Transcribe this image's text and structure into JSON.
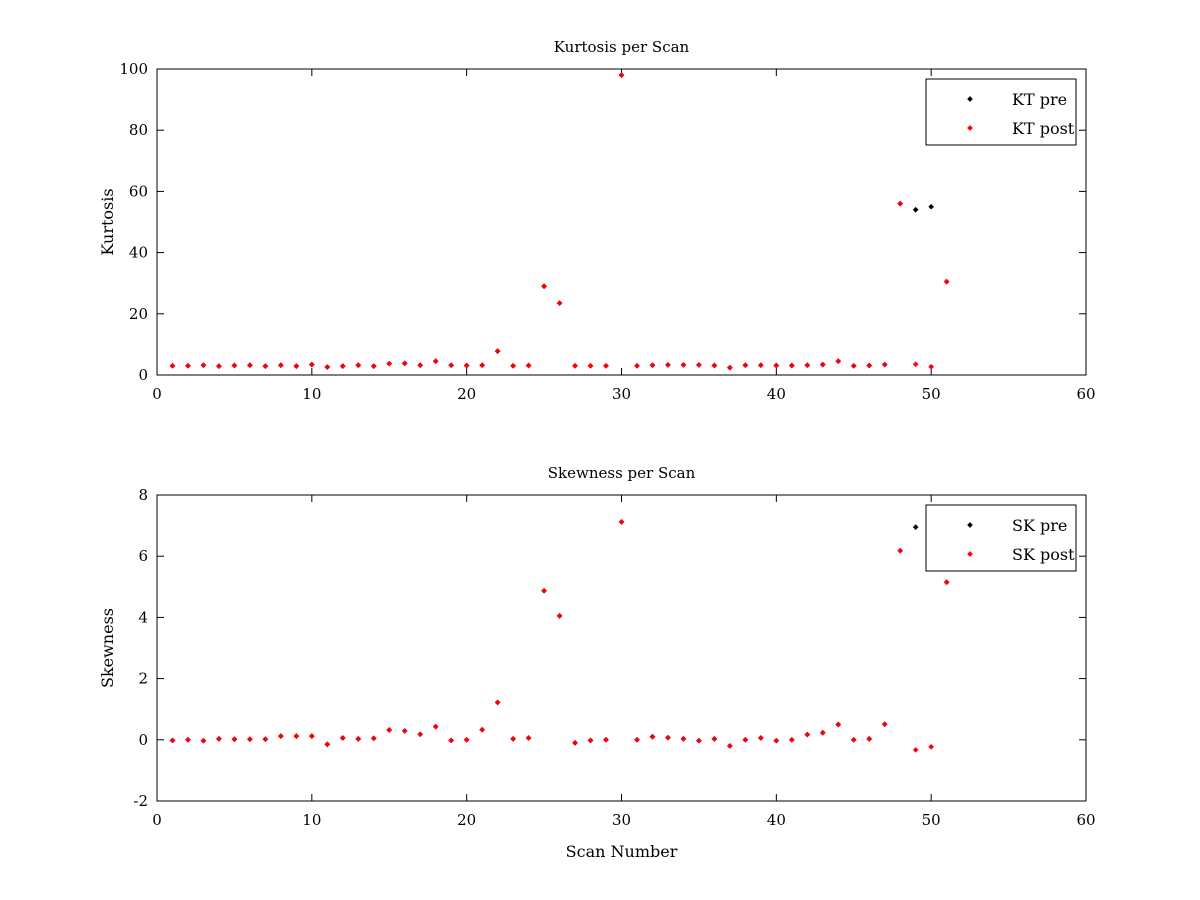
{
  "chart_data": [
    {
      "type": "scatter",
      "title": "Kurtosis per Scan",
      "xlabel": "",
      "ylabel": "Kurtosis",
      "xlim": [
        0,
        60
      ],
      "ylim": [
        0,
        100
      ],
      "xticks": [
        0,
        10,
        20,
        30,
        40,
        50,
        60
      ],
      "yticks": [
        0,
        20,
        40,
        60,
        80,
        100
      ],
      "grid": false,
      "legend": "top-right",
      "series": [
        {
          "name": "KT pre",
          "color": "#000000",
          "points": [
            [
              1,
              3.0
            ],
            [
              2,
              3.0
            ],
            [
              3,
              3.2
            ],
            [
              4,
              2.9
            ],
            [
              5,
              3.1
            ],
            [
              6,
              3.2
            ],
            [
              7,
              2.9
            ],
            [
              8,
              3.2
            ],
            [
              9,
              2.9
            ],
            [
              10,
              3.4
            ],
            [
              11,
              2.6
            ],
            [
              12,
              2.9
            ],
            [
              13,
              3.2
            ],
            [
              14,
              2.9
            ],
            [
              15,
              3.7
            ],
            [
              16,
              3.8
            ],
            [
              17,
              3.2
            ],
            [
              18,
              4.5
            ],
            [
              19,
              3.2
            ],
            [
              20,
              3.1
            ],
            [
              21,
              3.2
            ],
            [
              22,
              7.8
            ],
            [
              23,
              3.0
            ],
            [
              24,
              3.1
            ],
            [
              25,
              29.0
            ],
            [
              26,
              23.5
            ],
            [
              27,
              3.0
            ],
            [
              28,
              3.0
            ],
            [
              29,
              3.0
            ],
            [
              30,
              98.0
            ],
            [
              31,
              3.0
            ],
            [
              32,
              3.2
            ],
            [
              33,
              3.3
            ],
            [
              34,
              3.3
            ],
            [
              35,
              3.3
            ],
            [
              36,
              3.1
            ],
            [
              37,
              2.4
            ],
            [
              38,
              3.2
            ],
            [
              39,
              3.2
            ],
            [
              40,
              3.1
            ],
            [
              41,
              3.1
            ],
            [
              42,
              3.2
            ],
            [
              43,
              3.4
            ],
            [
              44,
              4.5
            ],
            [
              45,
              3.0
            ],
            [
              46,
              3.1
            ],
            [
              47,
              3.4
            ],
            [
              48,
              56.0
            ],
            [
              49,
              54.0
            ],
            [
              50,
              55.0
            ],
            [
              51,
              30.5
            ]
          ]
        },
        {
          "name": "KT post",
          "color": "#ff0000",
          "points": [
            [
              1,
              3.0
            ],
            [
              2,
              3.0
            ],
            [
              3,
              3.2
            ],
            [
              4,
              2.9
            ],
            [
              5,
              3.1
            ],
            [
              6,
              3.2
            ],
            [
              7,
              2.9
            ],
            [
              8,
              3.2
            ],
            [
              9,
              2.9
            ],
            [
              10,
              3.4
            ],
            [
              11,
              2.6
            ],
            [
              12,
              2.9
            ],
            [
              13,
              3.2
            ],
            [
              14,
              2.9
            ],
            [
              15,
              3.7
            ],
            [
              16,
              3.8
            ],
            [
              17,
              3.2
            ],
            [
              18,
              4.5
            ],
            [
              19,
              3.2
            ],
            [
              20,
              3.1
            ],
            [
              21,
              3.2
            ],
            [
              22,
              7.8
            ],
            [
              23,
              3.0
            ],
            [
              24,
              3.1
            ],
            [
              25,
              29.0
            ],
            [
              26,
              23.5
            ],
            [
              27,
              3.0
            ],
            [
              28,
              3.0
            ],
            [
              29,
              3.0
            ],
            [
              30,
              98.0
            ],
            [
              31,
              3.0
            ],
            [
              32,
              3.2
            ],
            [
              33,
              3.3
            ],
            [
              34,
              3.3
            ],
            [
              35,
              3.3
            ],
            [
              36,
              3.1
            ],
            [
              37,
              2.4
            ],
            [
              38,
              3.2
            ],
            [
              39,
              3.2
            ],
            [
              40,
              3.1
            ],
            [
              41,
              3.1
            ],
            [
              42,
              3.2
            ],
            [
              43,
              3.4
            ],
            [
              44,
              4.5
            ],
            [
              45,
              3.0
            ],
            [
              46,
              3.1
            ],
            [
              47,
              3.4
            ],
            [
              48,
              56.0
            ],
            [
              49,
              3.5
            ],
            [
              50,
              2.7
            ],
            [
              51,
              30.5
            ]
          ]
        }
      ]
    },
    {
      "type": "scatter",
      "title": "Skewness per Scan",
      "xlabel": "Scan Number",
      "ylabel": "Skewness",
      "xlim": [
        0,
        60
      ],
      "ylim": [
        -2,
        8
      ],
      "xticks": [
        0,
        10,
        20,
        30,
        40,
        50,
        60
      ],
      "yticks": [
        -2,
        0,
        2,
        4,
        6,
        8
      ],
      "grid": false,
      "legend": "top-right",
      "series": [
        {
          "name": "SK pre",
          "color": "#000000",
          "points": [
            [
              1,
              -0.02
            ],
            [
              2,
              0.0
            ],
            [
              3,
              -0.03
            ],
            [
              4,
              0.03
            ],
            [
              5,
              0.02
            ],
            [
              6,
              0.02
            ],
            [
              7,
              0.02
            ],
            [
              8,
              0.12
            ],
            [
              9,
              0.12
            ],
            [
              10,
              0.12
            ],
            [
              11,
              -0.15
            ],
            [
              12,
              0.06
            ],
            [
              13,
              0.03
            ],
            [
              14,
              0.05
            ],
            [
              15,
              0.32
            ],
            [
              16,
              0.29
            ],
            [
              17,
              0.18
            ],
            [
              18,
              0.43
            ],
            [
              19,
              -0.02
            ],
            [
              20,
              0.0
            ],
            [
              21,
              0.33
            ],
            [
              22,
              1.22
            ],
            [
              23,
              0.03
            ],
            [
              24,
              0.06
            ],
            [
              25,
              4.87
            ],
            [
              26,
              4.05
            ],
            [
              27,
              -0.1
            ],
            [
              28,
              -0.02
            ],
            [
              29,
              0.0
            ],
            [
              30,
              7.12
            ],
            [
              31,
              0.0
            ],
            [
              32,
              0.1
            ],
            [
              33,
              0.07
            ],
            [
              34,
              0.03
            ],
            [
              35,
              -0.03
            ],
            [
              36,
              0.03
            ],
            [
              37,
              -0.2
            ],
            [
              38,
              0.0
            ],
            [
              39,
              0.06
            ],
            [
              40,
              -0.03
            ],
            [
              41,
              0.0
            ],
            [
              42,
              0.17
            ],
            [
              43,
              0.23
            ],
            [
              44,
              0.5
            ],
            [
              45,
              0.0
            ],
            [
              46,
              0.03
            ],
            [
              47,
              0.51
            ],
            [
              48,
              6.18
            ],
            [
              49,
              6.95
            ],
            [
              50,
              6.5
            ],
            [
              51,
              5.15
            ]
          ]
        },
        {
          "name": "SK post",
          "color": "#ff0000",
          "points": [
            [
              1,
              -0.02
            ],
            [
              2,
              0.0
            ],
            [
              3,
              -0.03
            ],
            [
              4,
              0.03
            ],
            [
              5,
              0.02
            ],
            [
              6,
              0.02
            ],
            [
              7,
              0.02
            ],
            [
              8,
              0.12
            ],
            [
              9,
              0.12
            ],
            [
              10,
              0.12
            ],
            [
              11,
              -0.15
            ],
            [
              12,
              0.06
            ],
            [
              13,
              0.03
            ],
            [
              14,
              0.05
            ],
            [
              15,
              0.32
            ],
            [
              16,
              0.29
            ],
            [
              17,
              0.18
            ],
            [
              18,
              0.43
            ],
            [
              19,
              -0.02
            ],
            [
              20,
              0.0
            ],
            [
              21,
              0.33
            ],
            [
              22,
              1.22
            ],
            [
              23,
              0.03
            ],
            [
              24,
              0.06
            ],
            [
              25,
              4.87
            ],
            [
              26,
              4.05
            ],
            [
              27,
              -0.1
            ],
            [
              28,
              -0.02
            ],
            [
              29,
              0.0
            ],
            [
              30,
              7.12
            ],
            [
              31,
              0.0
            ],
            [
              32,
              0.1
            ],
            [
              33,
              0.07
            ],
            [
              34,
              0.03
            ],
            [
              35,
              -0.03
            ],
            [
              36,
              0.03
            ],
            [
              37,
              -0.2
            ],
            [
              38,
              0.0
            ],
            [
              39,
              0.06
            ],
            [
              40,
              -0.03
            ],
            [
              41,
              0.0
            ],
            [
              42,
              0.17
            ],
            [
              43,
              0.23
            ],
            [
              44,
              0.5
            ],
            [
              45,
              0.0
            ],
            [
              46,
              0.03
            ],
            [
              47,
              0.51
            ],
            [
              48,
              6.18
            ],
            [
              49,
              -0.33
            ],
            [
              50,
              -0.23
            ],
            [
              51,
              5.15
            ]
          ]
        }
      ]
    }
  ]
}
